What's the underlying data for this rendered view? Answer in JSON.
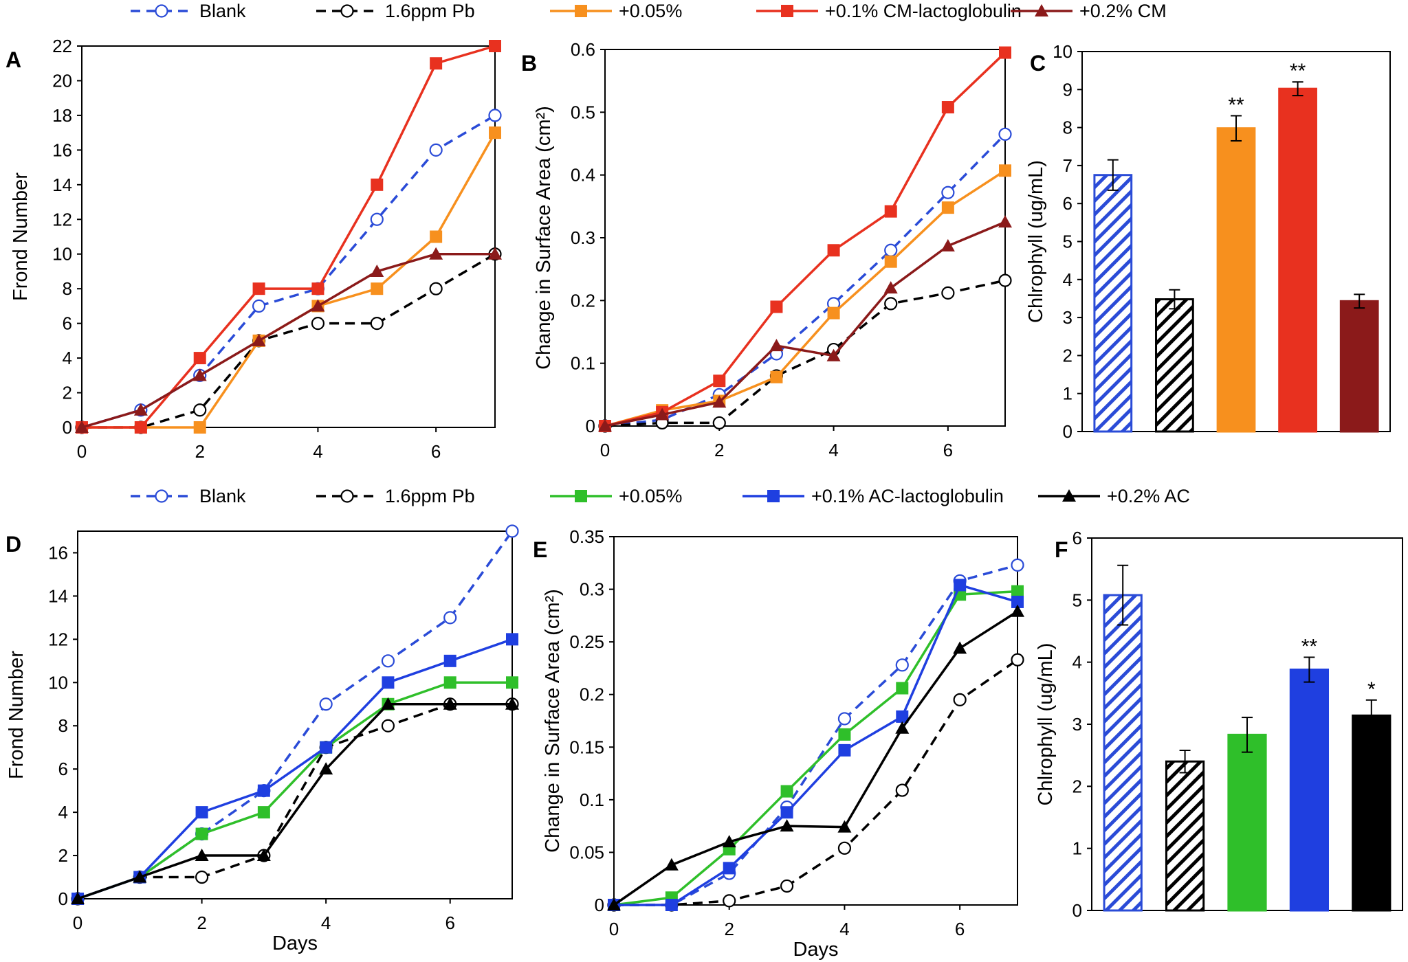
{
  "legends": [
    {
      "entries": [
        {
          "label": "Blank",
          "color": "#2a4bd7",
          "marker": "circle-open",
          "dash": true
        },
        {
          "label": "1.6ppm Pb",
          "color": "#000000",
          "marker": "circle-open",
          "dash": true
        },
        {
          "label": "+0.05%",
          "color": "#f7901e",
          "marker": "square",
          "dash": false
        },
        {
          "label": "+0.1% CM-lactoglobulin",
          "color": "#e8311f",
          "marker": "square",
          "dash": false
        },
        {
          "label": "+0.2% CM",
          "color": "#8b1a1a",
          "marker": "triangle",
          "dash": false
        }
      ]
    },
    {
      "entries": [
        {
          "label": "Blank",
          "color": "#2a4bd7",
          "marker": "circle-open",
          "dash": true
        },
        {
          "label": "1.6ppm Pb",
          "color": "#000000",
          "marker": "circle-open",
          "dash": true
        },
        {
          "label": "+0.05%",
          "color": "#2fbf2a",
          "marker": "square",
          "dash": false
        },
        {
          "label": "+0.1% AC-lactoglobulin",
          "color": "#1f3fe0",
          "marker": "square",
          "dash": false
        },
        {
          "label": "+0.2% AC",
          "color": "#000000",
          "marker": "triangle",
          "dash": false
        }
      ]
    }
  ],
  "chart_data": [
    {
      "panel": "A",
      "type": "line",
      "xlabel": "",
      "ylabel": "Frond Number",
      "xlim": [
        0,
        7
      ],
      "ylim": [
        0,
        22
      ],
      "xticks": [
        0,
        2,
        4,
        6
      ],
      "yticks": [
        0,
        2,
        4,
        6,
        8,
        10,
        12,
        14,
        16,
        18,
        20,
        22
      ],
      "series": [
        {
          "name": "Blank",
          "x": [
            0,
            1,
            2,
            3,
            4,
            5,
            6,
            7
          ],
          "y": [
            0,
            1,
            3,
            7,
            8,
            12,
            16,
            18
          ]
        },
        {
          "name": "1.6ppm Pb",
          "x": [
            0,
            1,
            2,
            3,
            4,
            5,
            6,
            7
          ],
          "y": [
            0,
            0,
            1,
            5,
            6,
            6,
            8,
            10
          ]
        },
        {
          "name": "+0.05%",
          "x": [
            0,
            1,
            2,
            3,
            4,
            5,
            6,
            7
          ],
          "y": [
            0,
            0,
            0,
            5,
            7,
            8,
            11,
            17
          ]
        },
        {
          "name": "+0.1% CM-lactoglobulin",
          "x": [
            0,
            1,
            2,
            3,
            4,
            5,
            6,
            7
          ],
          "y": [
            0,
            0,
            4,
            8,
            8,
            14,
            21,
            22
          ]
        },
        {
          "name": "+0.2% CM",
          "x": [
            0,
            1,
            2,
            3,
            4,
            5,
            6,
            7
          ],
          "y": [
            0,
            1,
            3,
            5,
            7,
            9,
            10,
            10
          ]
        }
      ]
    },
    {
      "panel": "B",
      "type": "line",
      "xlabel": "",
      "ylabel": "Change in Surface Area (cm²)",
      "xlim": [
        0,
        7
      ],
      "ylim": [
        0,
        0.6
      ],
      "xticks": [
        0,
        2,
        4,
        6
      ],
      "yticks": [
        0,
        0.1,
        0.2,
        0.3,
        0.4,
        0.5,
        0.6
      ],
      "series": [
        {
          "name": "Blank",
          "x": [
            0,
            1,
            2,
            3,
            4,
            5,
            6,
            7
          ],
          "y": [
            0,
            0.01,
            0.05,
            0.115,
            0.195,
            0.28,
            0.372,
            0.465
          ]
        },
        {
          "name": "1.6ppm Pb",
          "x": [
            0,
            1,
            2,
            3,
            4,
            5,
            6,
            7
          ],
          "y": [
            0,
            0.005,
            0.005,
            0.08,
            0.122,
            0.195,
            0.212,
            0.232
          ]
        },
        {
          "name": "+0.05%",
          "x": [
            0,
            1,
            2,
            3,
            4,
            5,
            6,
            7
          ],
          "y": [
            0,
            0.025,
            0.04,
            0.078,
            0.18,
            0.262,
            0.348,
            0.407
          ]
        },
        {
          "name": "+0.1% CM-lactoglobulin",
          "x": [
            0,
            1,
            2,
            3,
            4,
            5,
            6,
            7
          ],
          "y": [
            0,
            0.022,
            0.072,
            0.19,
            0.28,
            0.342,
            0.508,
            0.595
          ]
        },
        {
          "name": "+0.2% CM",
          "x": [
            0,
            1,
            2,
            3,
            4,
            5,
            6,
            7
          ],
          "y": [
            0,
            0.018,
            0.038,
            0.128,
            0.112,
            0.22,
            0.287,
            0.325
          ]
        }
      ]
    },
    {
      "panel": "C",
      "type": "bar",
      "ylabel": "Chlrophyll (ug/mL)",
      "ylim": [
        0,
        10
      ],
      "yticks": [
        0,
        1,
        2,
        3,
        4,
        5,
        6,
        7,
        8,
        9,
        10
      ],
      "categories": [
        "Blank",
        "1.6ppm Pb",
        "+0.05%",
        "+0.1% CM-lactoglobulin",
        "+0.2% CM"
      ],
      "values": [
        6.75,
        3.48,
        7.98,
        9.02,
        3.43
      ],
      "errors": [
        0.4,
        0.25,
        0.33,
        0.18,
        0.18
      ],
      "significance": [
        "",
        "",
        "**",
        "**",
        ""
      ]
    },
    {
      "panel": "D",
      "type": "line",
      "xlabel": "Days",
      "ylabel": "Frond Number",
      "xlim": [
        0,
        7
      ],
      "ylim": [
        0,
        17
      ],
      "xticks": [
        0,
        2,
        4,
        6
      ],
      "yticks": [
        0,
        2,
        4,
        6,
        8,
        10,
        12,
        14,
        16
      ],
      "series": [
        {
          "name": "Blank",
          "x": [
            0,
            1,
            2,
            3,
            4,
            5,
            6,
            7
          ],
          "y": [
            0,
            1,
            3,
            5,
            9,
            11,
            13,
            17
          ]
        },
        {
          "name": "1.6ppm Pb",
          "x": [
            0,
            1,
            2,
            3,
            4,
            5,
            6,
            7
          ],
          "y": [
            0,
            1,
            1,
            2,
            7,
            8,
            9,
            9
          ]
        },
        {
          "name": "+0.05%",
          "x": [
            0,
            1,
            2,
            3,
            4,
            5,
            6,
            7
          ],
          "y": [
            0,
            1,
            3,
            4,
            7,
            9,
            10,
            10
          ]
        },
        {
          "name": "+0.1% AC-lactoglobulin",
          "x": [
            0,
            1,
            2,
            3,
            4,
            5,
            6,
            7
          ],
          "y": [
            0,
            1,
            4,
            5,
            7,
            10,
            11,
            12
          ]
        },
        {
          "name": "+0.2% AC",
          "x": [
            0,
            1,
            2,
            3,
            4,
            5,
            6,
            7
          ],
          "y": [
            0,
            1,
            2,
            2,
            6,
            9,
            9,
            9
          ]
        }
      ]
    },
    {
      "panel": "E",
      "type": "line",
      "xlabel": "Days",
      "ylabel": "Change in Surface Area (cm²)",
      "xlim": [
        0,
        7
      ],
      "ylim": [
        0,
        0.35
      ],
      "xticks": [
        0,
        2,
        4,
        6
      ],
      "yticks": [
        0,
        0.05,
        0.1,
        0.15,
        0.2,
        0.25,
        0.3,
        0.35
      ],
      "series": [
        {
          "name": "Blank",
          "x": [
            0,
            1,
            2,
            3,
            4,
            5,
            6,
            7
          ],
          "y": [
            0,
            0,
            0.03,
            0.093,
            0.177,
            0.228,
            0.308,
            0.323
          ]
        },
        {
          "name": "1.6ppm Pb",
          "x": [
            0,
            1,
            2,
            3,
            4,
            5,
            6,
            7
          ],
          "y": [
            0,
            0,
            0.004,
            0.018,
            0.054,
            0.109,
            0.195,
            0.233
          ]
        },
        {
          "name": "+0.05%",
          "x": [
            0,
            1,
            2,
            3,
            4,
            5,
            6,
            7
          ],
          "y": [
            0,
            0.007,
            0.053,
            0.108,
            0.162,
            0.206,
            0.295,
            0.298
          ]
        },
        {
          "name": "+0.1% AC-lactoglobulin",
          "x": [
            0,
            1,
            2,
            3,
            4,
            5,
            6,
            7
          ],
          "y": [
            0,
            0,
            0.035,
            0.088,
            0.147,
            0.179,
            0.304,
            0.288
          ]
        },
        {
          "name": "+0.2% AC",
          "x": [
            0,
            1,
            2,
            3,
            4,
            5,
            6,
            7
          ],
          "y": [
            0,
            0.038,
            0.06,
            0.075,
            0.074,
            0.168,
            0.244,
            0.279
          ]
        }
      ]
    },
    {
      "panel": "F",
      "type": "bar",
      "ylabel": "Chlrophyll (ug/mL)",
      "ylim": [
        0,
        6
      ],
      "yticks": [
        0,
        1,
        2,
        3,
        4,
        5,
        6
      ],
      "categories": [
        "Blank",
        "1.6ppm Pb",
        "+0.05%",
        "+0.1% AC-lactoglobulin",
        "+0.2% AC"
      ],
      "values": [
        5.08,
        2.4,
        2.83,
        3.88,
        3.14
      ],
      "errors": [
        0.48,
        0.18,
        0.28,
        0.2,
        0.25
      ],
      "significance": [
        "",
        "",
        "",
        "**",
        "*"
      ]
    }
  ]
}
